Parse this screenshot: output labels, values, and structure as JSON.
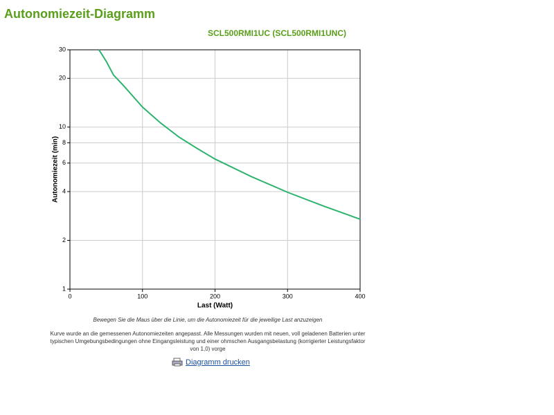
{
  "page_title": "Autonomiezeit-Diagramm",
  "chart_data": {
    "type": "line",
    "title": "SCL500RMI1UC (SCL500RMI1UNC)",
    "x_label": "Last (Watt)",
    "y_label": "Autonomiezeit (min)",
    "x": [
      40,
      50,
      60,
      75,
      100,
      125,
      150,
      175,
      200,
      250,
      300,
      350,
      400
    ],
    "values": [
      30,
      25.5,
      21,
      17.8,
      13.3,
      10.6,
      8.7,
      7.4,
      6.35,
      4.95,
      3.96,
      3.25,
      2.7
    ],
    "color": "#2db36e",
    "xlim": [
      0,
      400
    ],
    "xticks": [
      0,
      100,
      200,
      300,
      400
    ],
    "ylim": [
      1,
      30
    ],
    "yticks": [
      1,
      2,
      4,
      6,
      8,
      10,
      20,
      30
    ],
    "log_y": true,
    "grid": true
  },
  "hint": "Bewegen Sie die Maus über die Linie, um die Autonomiezeit für die jeweilige Last anzuzeigen",
  "note": "Kurve wurde an die gemessenen Autonomiezeiten angepasst. Alle Messungen wurden mit neuen, voll geladenen Batterien unter typischen Umgebungsbedingungen ohne Eingangsleistung und einer ohmschen Ausgangsbelastung (korrigierter Leistungsfaktor von 1,0) vorge",
  "print_link": "Diagramm drucken"
}
